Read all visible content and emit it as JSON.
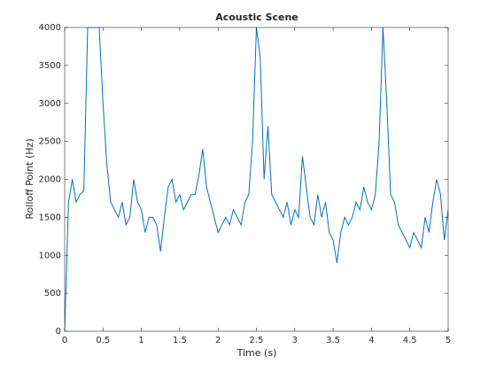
{
  "chart_data": {
    "type": "line",
    "title": "Acoustic Scene",
    "xlabel": "Time (s)",
    "ylabel": "Rolloff Point (Hz)",
    "x": [
      0,
      0.05,
      0.1,
      0.15,
      0.2,
      0.25,
      0.3,
      0.35,
      0.4,
      0.45,
      0.5,
      0.55,
      0.6,
      0.65,
      0.7,
      0.75,
      0.8,
      0.85,
      0.9,
      0.95,
      1,
      1.05,
      1.1,
      1.15,
      1.2,
      1.25,
      1.3,
      1.35,
      1.4,
      1.45,
      1.5,
      1.55,
      1.6,
      1.65,
      1.7,
      1.75,
      1.8,
      1.85,
      1.9,
      1.95,
      2,
      2.05,
      2.1,
      2.15,
      2.2,
      2.25,
      2.3,
      2.35,
      2.4,
      2.45,
      2.5,
      2.55,
      2.6,
      2.65,
      2.7,
      2.75,
      2.8,
      2.85,
      2.9,
      2.95,
      3,
      3.05,
      3.1,
      3.15,
      3.2,
      3.25,
      3.3,
      3.35,
      3.4,
      3.45,
      3.5,
      3.55,
      3.6,
      3.65,
      3.7,
      3.75,
      3.8,
      3.85,
      3.9,
      3.95,
      4,
      4.05,
      4.1,
      4.15,
      4.2,
      4.25,
      4.3,
      4.35,
      4.4,
      4.45,
      4.5,
      4.55,
      4.6,
      4.65,
      4.7,
      4.75,
      4.8,
      4.85,
      4.9,
      4.95,
      5
    ],
    "series": [
      {
        "name": "Rolloff Point",
        "color": "#0072bd",
        "values": [
          0,
          1700,
          2000,
          1700,
          1800,
          1850,
          4000,
          4000,
          4000,
          4000,
          3000,
          2200,
          1700,
          1600,
          1500,
          1700,
          1400,
          1500,
          2000,
          1700,
          1600,
          1300,
          1500,
          1500,
          1400,
          1050,
          1500,
          1900,
          2000,
          1700,
          1800,
          1600,
          1700,
          1800,
          1800,
          2050,
          2400,
          1900,
          1700,
          1500,
          1300,
          1400,
          1500,
          1400,
          1600,
          1500,
          1400,
          1700,
          1800,
          2500,
          4000,
          3600,
          2000,
          2700,
          1800,
          1700,
          1600,
          1500,
          1700,
          1400,
          1600,
          1500,
          2300,
          1900,
          1500,
          1400,
          1800,
          1500,
          1700,
          1300,
          1200,
          900,
          1300,
          1500,
          1400,
          1500,
          1700,
          1600,
          1900,
          1700,
          1600,
          1800,
          2500,
          4000,
          3000,
          1800,
          1700,
          1400,
          1300,
          1200,
          1100,
          1300,
          1200,
          1100,
          1500,
          1300,
          1700,
          2000,
          1800,
          1200,
          1600
        ]
      }
    ],
    "xlim": [
      0,
      5
    ],
    "xticks": [
      0,
      0.5,
      1,
      1.5,
      2,
      2.5,
      3,
      3.5,
      4,
      4.5,
      5
    ],
    "ylim": [
      0,
      4000
    ],
    "yticks": [
      0,
      500,
      1000,
      1500,
      2000,
      2500,
      3000,
      3500,
      4000
    ]
  }
}
